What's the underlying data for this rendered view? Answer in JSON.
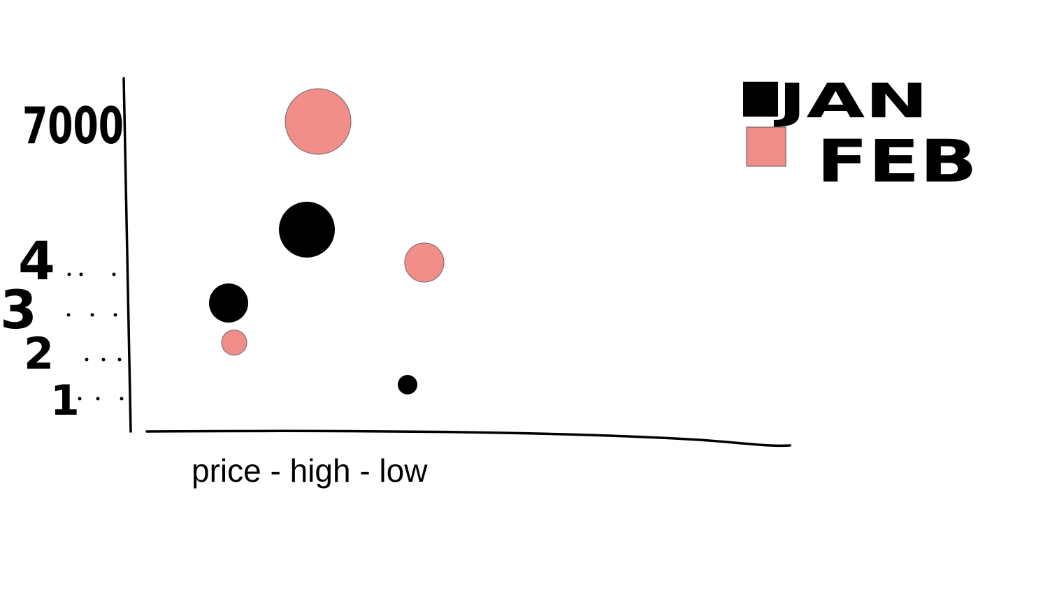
{
  "chart_data": {
    "type": "scatter",
    "title": "",
    "xlabel": "price - high - low",
    "ylabel": "7000",
    "y_ticks": [
      "1",
      "2",
      "3",
      "4"
    ],
    "grid": false,
    "legend_position": "top-right",
    "series": [
      {
        "name": "JAN",
        "color": "#000000",
        "points": [
          {
            "x": 1.8,
            "y": 3.0,
            "size": 2.8
          },
          {
            "x": 3.2,
            "y": 4.7,
            "size": 4.0
          },
          {
            "x": 5.0,
            "y": 1.0,
            "size": 1.4
          }
        ]
      },
      {
        "name": "FEB",
        "color": "#f28e8a",
        "points": [
          {
            "x": 1.9,
            "y": 2.1,
            "size": 1.8
          },
          {
            "x": 3.4,
            "y": 7.0,
            "size": 4.7
          },
          {
            "x": 5.3,
            "y": 4.0,
            "size": 2.8
          }
        ]
      }
    ]
  }
}
